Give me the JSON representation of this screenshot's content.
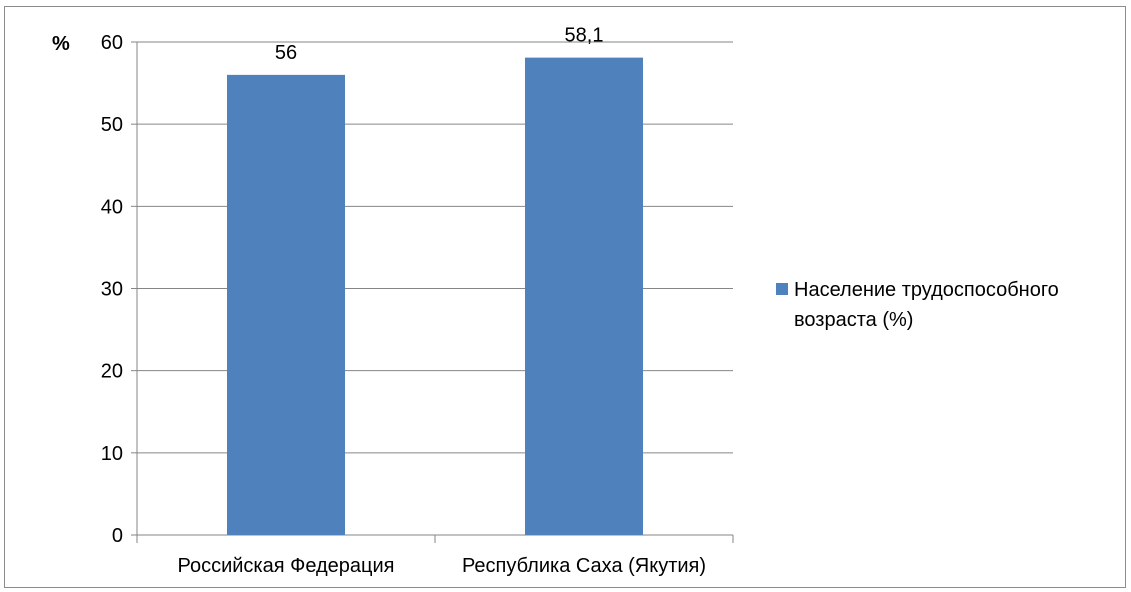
{
  "chart_data": {
    "type": "bar",
    "categories": [
      "Российская Федерация",
      "Республика Саха (Якутия)"
    ],
    "series": [
      {
        "name": "Население трудоспособного возраста (%)",
        "values": [
          56,
          58.1
        ],
        "color": "#4f81bd"
      }
    ],
    "data_labels": [
      "56",
      "58,1"
    ],
    "yunit": "%",
    "ylim": [
      0,
      60
    ],
    "yticks": [
      0,
      10,
      20,
      30,
      40,
      50,
      60
    ],
    "grid": true,
    "legend_position": "right",
    "legend_lines": [
      "Население трудоспособного",
      "возраста (%)"
    ]
  }
}
